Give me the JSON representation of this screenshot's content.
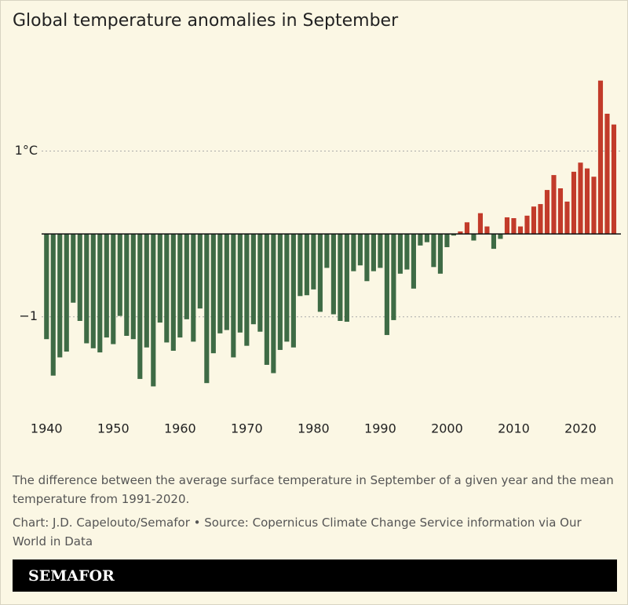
{
  "chart_data": {
    "type": "bar",
    "title": "Global temperature anomalies in September",
    "note": "The difference between the average surface temperature in September of a given year and the mean temperature from 1991-2020.",
    "source": "Chart: J.D. Capelouto/Semafor • Source: Copernicus Climate Change Service information via Our World in Data",
    "brand": "SEMAFOR",
    "x": [
      1940,
      1941,
      1942,
      1943,
      1944,
      1945,
      1946,
      1947,
      1948,
      1949,
      1950,
      1951,
      1952,
      1953,
      1954,
      1955,
      1956,
      1957,
      1958,
      1959,
      1960,
      1961,
      1962,
      1963,
      1964,
      1965,
      1966,
      1967,
      1968,
      1969,
      1970,
      1971,
      1972,
      1973,
      1974,
      1975,
      1976,
      1977,
      1978,
      1979,
      1980,
      1981,
      1982,
      1983,
      1984,
      1985,
      1986,
      1987,
      1988,
      1989,
      1990,
      1991,
      1992,
      1993,
      1994,
      1995,
      1996,
      1997,
      1998,
      1999,
      2000,
      2001,
      2002,
      2003,
      2004,
      2005,
      2006,
      2007,
      2008,
      2009,
      2010,
      2011,
      2012,
      2013,
      2014,
      2015,
      2016,
      2017,
      2018,
      2019,
      2020,
      2021,
      2022,
      2023,
      2024,
      2025
    ],
    "values": [
      -1.27,
      -1.71,
      -1.49,
      -1.42,
      -0.83,
      -1.05,
      -1.32,
      -1.38,
      -1.43,
      -1.25,
      -1.33,
      -0.99,
      -1.23,
      -1.27,
      -1.75,
      -1.37,
      -1.84,
      -1.07,
      -1.31,
      -1.41,
      -1.25,
      -1.03,
      -1.3,
      -0.9,
      -1.8,
      -1.44,
      -1.2,
      -1.16,
      -1.49,
      -1.19,
      -1.35,
      -1.09,
      -1.18,
      -1.58,
      -1.68,
      -1.4,
      -1.3,
      -1.37,
      -0.75,
      -0.74,
      -0.67,
      -0.94,
      -0.41,
      -0.97,
      -1.05,
      -1.06,
      -0.45,
      -0.38,
      -0.57,
      -0.45,
      -0.41,
      -1.22,
      -1.04,
      -0.48,
      -0.43,
      -0.66,
      -0.14,
      -0.1,
      -0.4,
      -0.48,
      -0.16,
      -0.02,
      0.03,
      0.14,
      -0.08,
      0.25,
      0.09,
      -0.18,
      -0.06,
      0.2,
      0.19,
      0.09,
      0.22,
      0.33,
      0.36,
      0.53,
      0.71,
      0.55,
      0.39,
      0.75,
      0.86,
      0.79,
      0.69,
      1.85,
      1.45,
      1.32
    ],
    "positive_color": "#c23b2a",
    "negative_color": "#3e6b45",
    "xlim": [
      1937.5,
      2027
    ],
    "xticks": [
      1940,
      1950,
      1960,
      1970,
      1980,
      1990,
      2000,
      2010,
      2020
    ],
    "ylim": [
      -2.3,
      2.15
    ],
    "yticks": [
      {
        "value": -1,
        "label": "−1"
      },
      {
        "value": 1,
        "label": "1°C"
      }
    ],
    "grid": true
  }
}
